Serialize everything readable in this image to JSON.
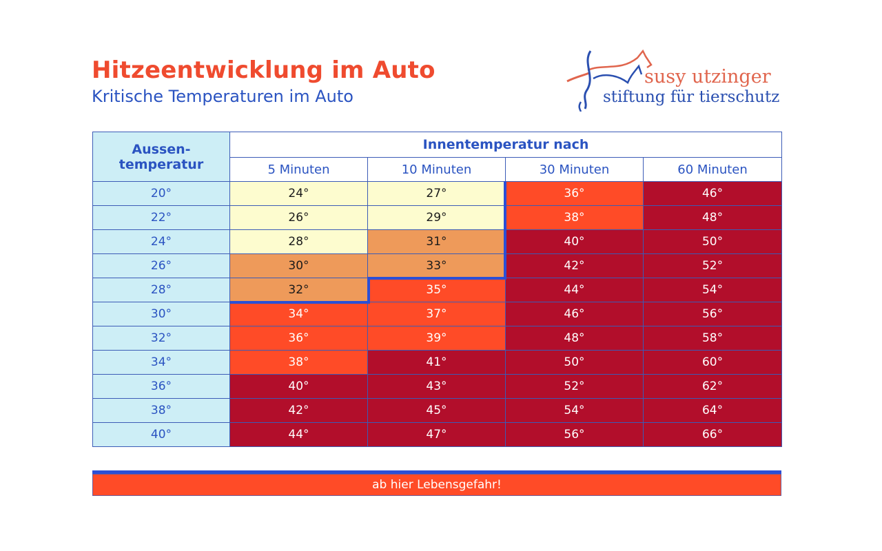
{
  "header": {
    "title": "Hitzeentwicklung im Auto",
    "subtitle": "Kritische Temperaturen im Auto"
  },
  "logo": {
    "line1": "susy utzinger",
    "line2": "stiftung für tierschutz"
  },
  "table": {
    "outside_header": "Aussen-\ntemperatur",
    "outside_header_l1": "Aussen-",
    "outside_header_l2": "temperatur",
    "inside_header": "Innentemperatur nach",
    "columns": [
      "5 Minuten",
      "10 Minuten",
      "30 Minuten",
      "60 Minuten"
    ],
    "rows": [
      {
        "outside": "20°",
        "values": [
          "24°",
          "27°",
          "36°",
          "46°"
        ],
        "colors": [
          "yellow",
          "yellow",
          "red",
          "dark"
        ]
      },
      {
        "outside": "22°",
        "values": [
          "26°",
          "29°",
          "38°",
          "48°"
        ],
        "colors": [
          "yellow",
          "yellow",
          "red",
          "dark"
        ]
      },
      {
        "outside": "24°",
        "values": [
          "28°",
          "31°",
          "40°",
          "50°"
        ],
        "colors": [
          "yellow",
          "orange",
          "dark",
          "dark"
        ]
      },
      {
        "outside": "26°",
        "values": [
          "30°",
          "33°",
          "42°",
          "52°"
        ],
        "colors": [
          "orange",
          "orange",
          "dark",
          "dark"
        ]
      },
      {
        "outside": "28°",
        "values": [
          "32°",
          "35°",
          "44°",
          "54°"
        ],
        "colors": [
          "orange",
          "red",
          "dark",
          "dark"
        ]
      },
      {
        "outside": "30°",
        "values": [
          "34°",
          "37°",
          "46°",
          "56°"
        ],
        "colors": [
          "red",
          "red",
          "dark",
          "dark"
        ]
      },
      {
        "outside": "32°",
        "values": [
          "36°",
          "39°",
          "48°",
          "58°"
        ],
        "colors": [
          "red",
          "red",
          "dark",
          "dark"
        ]
      },
      {
        "outside": "34°",
        "values": [
          "38°",
          "41°",
          "50°",
          "60°"
        ],
        "colors": [
          "red",
          "dark",
          "dark",
          "dark"
        ]
      },
      {
        "outside": "36°",
        "values": [
          "40°",
          "43°",
          "52°",
          "62°"
        ],
        "colors": [
          "dark",
          "dark",
          "dark",
          "dark"
        ]
      },
      {
        "outside": "38°",
        "values": [
          "42°",
          "45°",
          "54°",
          "64°"
        ],
        "colors": [
          "dark",
          "dark",
          "dark",
          "dark"
        ]
      },
      {
        "outside": "40°",
        "values": [
          "44°",
          "47°",
          "56°",
          "66°"
        ],
        "colors": [
          "dark",
          "dark",
          "dark",
          "dark"
        ]
      }
    ]
  },
  "legend": {
    "label": "ab hier Lebensgefahr!"
  },
  "colors": {
    "title": "#ef4b2f",
    "subtitle": "#2a53c1",
    "outside_bg": "#cdeef6",
    "yellow": "#fdfccf",
    "orange": "#ee9a5a",
    "red": "#ff4b27",
    "dark": "#b20e2b",
    "danger_line": "#2b4fd6"
  },
  "chart_data": {
    "type": "table",
    "title": "Hitzeentwicklung im Auto",
    "subtitle": "Kritische Temperaturen im Auto",
    "row_header": "Aussentemperatur",
    "column_group_header": "Innentemperatur nach",
    "categories": [
      "20°",
      "22°",
      "24°",
      "26°",
      "28°",
      "30°",
      "32°",
      "34°",
      "36°",
      "38°",
      "40°"
    ],
    "x": [
      20,
      22,
      24,
      26,
      28,
      30,
      32,
      34,
      36,
      38,
      40
    ],
    "series": [
      {
        "name": "5 Minuten",
        "values": [
          24,
          26,
          28,
          30,
          32,
          34,
          36,
          38,
          40,
          42,
          44
        ]
      },
      {
        "name": "10 Minuten",
        "values": [
          27,
          29,
          31,
          33,
          35,
          37,
          39,
          41,
          43,
          45,
          47
        ]
      },
      {
        "name": "30 Minuten",
        "values": [
          36,
          38,
          40,
          42,
          44,
          46,
          48,
          50,
          52,
          54,
          56
        ]
      },
      {
        "name": "60 Minuten",
        "values": [
          46,
          48,
          50,
          52,
          54,
          56,
          58,
          60,
          62,
          64,
          66
        ]
      }
    ],
    "unit": "°C",
    "annotation": "ab hier Lebensgefahr!",
    "danger_threshold_note": "Blue line marks cells from which danger to life begins (≥ 34° in 5 min, ≥ 35° in 10 min, all 30/60 min values)"
  }
}
